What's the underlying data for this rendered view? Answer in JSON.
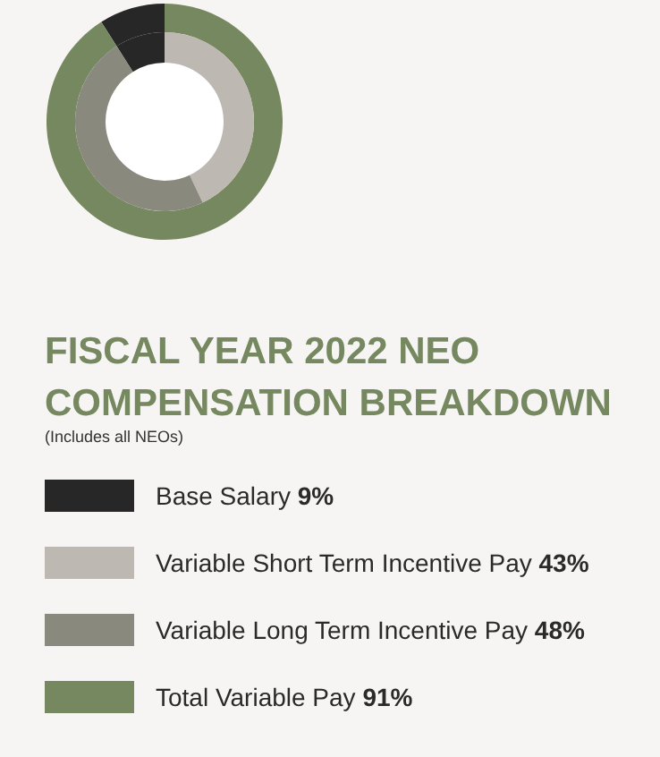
{
  "chart_data": {
    "type": "donut",
    "title": "FISCAL YEAR 2022 NEO\nCOMPENSATION BREAKDOWN",
    "subtitle": "(Includes all NEOs)",
    "categories": [
      "Base Salary",
      "Variable Short Term Incentive Pay",
      "Variable Long Term Incentive Pay",
      "Total Variable Pay"
    ],
    "colors": [
      "#272727",
      "#bdb9b2",
      "#8a897e",
      "#76885f"
    ],
    "series": [
      {
        "values": [
          9,
          null,
          null,
          91
        ]
      },
      {
        "values": [
          9,
          43,
          48,
          null
        ]
      }
    ],
    "value_labels": [
      "9%",
      "43%",
      "48%",
      "91%"
    ],
    "legend": "bottom"
  }
}
